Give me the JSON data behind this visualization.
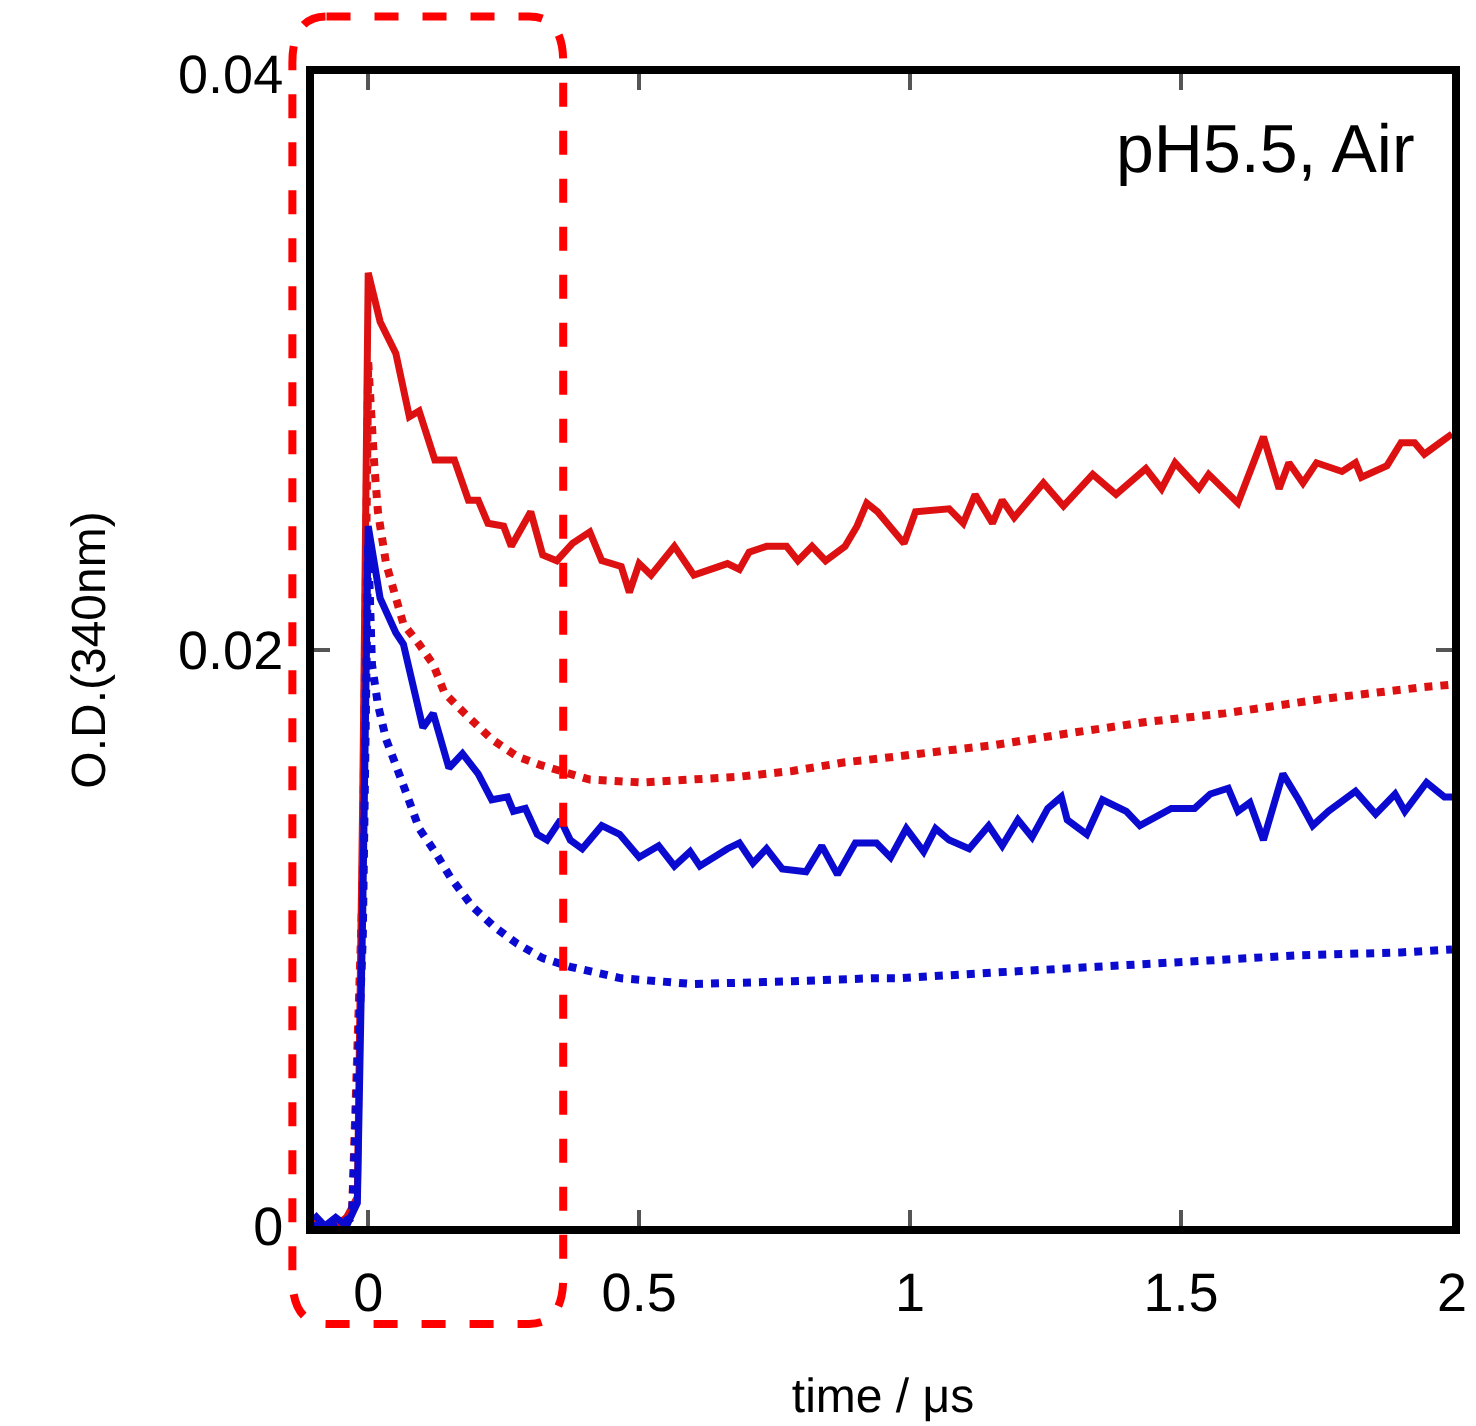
{
  "chart_data": {
    "type": "line",
    "xlabel": "time / μs",
    "ylabel": "O.D.(340nm)",
    "annotations": [
      "pH5.5, Air"
    ],
    "xlim": [
      -0.1,
      2
    ],
    "xticks": [
      0,
      0.5,
      1,
      1.5,
      2
    ],
    "ylim": [
      0,
      0.04
    ],
    "yticks": [
      0,
      0.02,
      0.04
    ],
    "series": [
      {
        "color": "#dd1111",
        "line_style": "solid",
        "x": [
          -0.1,
          -0.08,
          -0.06,
          -0.04,
          -0.02,
          -0.01,
          0,
          0.022,
          0.051,
          0.076,
          0.094,
          0.123,
          0.159,
          0.185,
          0.203,
          0.221,
          0.25,
          0.264,
          0.3,
          0.322,
          0.348,
          0.377,
          0.409,
          0.431,
          0.467,
          0.482,
          0.5,
          0.522,
          0.565,
          0.601,
          0.663,
          0.685,
          0.703,
          0.735,
          0.772,
          0.793,
          0.819,
          0.844,
          0.88,
          0.902,
          0.92,
          0.94,
          0.989,
          1.01,
          1.072,
          1.098,
          1.12,
          1.152,
          1.17,
          1.192,
          1.246,
          1.283,
          1.337,
          1.38,
          1.435,
          1.464,
          1.489,
          1.533,
          1.551,
          1.605,
          1.652,
          1.681,
          1.699,
          1.725,
          1.75,
          1.797,
          1.822,
          1.833,
          1.88,
          1.906,
          1.931,
          1.949,
          1.978,
          2
        ],
        "values": [
          0.0003,
          0.0,
          0.0,
          0.0003,
          0.001,
          0.015,
          0.0331,
          0.0314,
          0.0303,
          0.0281,
          0.0283,
          0.0266,
          0.0266,
          0.0252,
          0.0252,
          0.0244,
          0.0243,
          0.0236,
          0.0248,
          0.0233,
          0.0231,
          0.0237,
          0.0241,
          0.0231,
          0.0229,
          0.022,
          0.023,
          0.0226,
          0.0236,
          0.0226,
          0.023,
          0.0228,
          0.0234,
          0.0236,
          0.0236,
          0.0231,
          0.0236,
          0.0231,
          0.0236,
          0.0243,
          0.0251,
          0.0248,
          0.0237,
          0.0248,
          0.0249,
          0.0244,
          0.0254,
          0.0244,
          0.0252,
          0.0246,
          0.0258,
          0.025,
          0.0261,
          0.0254,
          0.0263,
          0.0256,
          0.0265,
          0.0256,
          0.0261,
          0.0251,
          0.0274,
          0.0256,
          0.0265,
          0.0258,
          0.0265,
          0.0262,
          0.0265,
          0.026,
          0.0264,
          0.0272,
          0.0272,
          0.0268,
          0.0272,
          0.0275
        ]
      },
      {
        "color": "#dd1111",
        "line_style": "dotted",
        "x": [
          -0.1,
          -0.06,
          -0.03,
          -0.01,
          0,
          0.011,
          0.018,
          0.033,
          0.065,
          0.094,
          0.12,
          0.141,
          0.178,
          0.228,
          0.275,
          0.319,
          0.409,
          0.504,
          0.685,
          0.783,
          0.88,
          0.975,
          1.018,
          1.156,
          1.29,
          1.435,
          1.58,
          1.761,
          1.942,
          2
        ],
        "values": [
          0.0,
          0.0,
          0.0003,
          0.012,
          0.03,
          0.0265,
          0.0248,
          0.023,
          0.0209,
          0.0202,
          0.0195,
          0.0185,
          0.0178,
          0.0169,
          0.0163,
          0.016,
          0.0155,
          0.0154,
          0.0156,
          0.0158,
          0.0161,
          0.0163,
          0.0164,
          0.0167,
          0.0171,
          0.0175,
          0.0178,
          0.0183,
          0.0187,
          0.0188
        ]
      },
      {
        "color": "#0a0ad0",
        "line_style": "solid",
        "x": [
          -0.1,
          -0.08,
          -0.06,
          -0.04,
          -0.02,
          -0.01,
          0,
          0.022,
          0.051,
          0.065,
          0.101,
          0.12,
          0.149,
          0.174,
          0.203,
          0.228,
          0.257,
          0.268,
          0.29,
          0.312,
          0.33,
          0.355,
          0.373,
          0.395,
          0.431,
          0.464,
          0.5,
          0.536,
          0.565,
          0.594,
          0.612,
          0.663,
          0.685,
          0.71,
          0.735,
          0.764,
          0.808,
          0.837,
          0.866,
          0.899,
          0.938,
          0.964,
          0.993,
          1.025,
          1.047,
          1.072,
          1.109,
          1.145,
          1.17,
          1.199,
          1.225,
          1.254,
          1.279,
          1.29,
          1.326,
          1.355,
          1.399,
          1.424,
          1.482,
          1.525,
          1.554,
          1.587,
          1.605,
          1.627,
          1.652,
          1.688,
          1.717,
          1.743,
          1.772,
          1.822,
          1.859,
          1.895,
          1.913,
          1.953,
          1.986,
          2
        ],
        "values": [
          0.0004,
          0.0,
          0.0003,
          0.0,
          0.0008,
          0.011,
          0.0243,
          0.0218,
          0.0206,
          0.0202,
          0.0173,
          0.0178,
          0.0159,
          0.0164,
          0.0157,
          0.0148,
          0.0149,
          0.0144,
          0.0145,
          0.0136,
          0.0134,
          0.0141,
          0.0134,
          0.0131,
          0.0139,
          0.0136,
          0.0128,
          0.0132,
          0.0125,
          0.013,
          0.0125,
          0.0131,
          0.0133,
          0.0126,
          0.0131,
          0.0124,
          0.0123,
          0.0132,
          0.0122,
          0.0133,
          0.0133,
          0.0128,
          0.0138,
          0.013,
          0.0138,
          0.0134,
          0.0131,
          0.0139,
          0.0132,
          0.0141,
          0.0135,
          0.0145,
          0.0149,
          0.0141,
          0.0136,
          0.0148,
          0.0144,
          0.0139,
          0.0145,
          0.0145,
          0.015,
          0.0152,
          0.0144,
          0.0147,
          0.0134,
          0.0157,
          0.0148,
          0.0139,
          0.0144,
          0.0151,
          0.0143,
          0.015,
          0.0144,
          0.0154,
          0.0149,
          0.0149
        ]
      },
      {
        "color": "#0a0ad0",
        "line_style": "dotted",
        "x": [
          -0.1,
          -0.06,
          -0.03,
          -0.01,
          0,
          0.007,
          0.018,
          0.033,
          0.065,
          0.094,
          0.123,
          0.152,
          0.192,
          0.232,
          0.275,
          0.322,
          0.373,
          0.467,
          0.601,
          0.783,
          0.928,
          0.975,
          1.156,
          1.344,
          1.533,
          1.717,
          1.906,
          2
        ],
        "values": [
          0.0,
          0.0,
          0.0003,
          0.01,
          0.0237,
          0.0195,
          0.0181,
          0.0169,
          0.0153,
          0.0138,
          0.013,
          0.0121,
          0.0111,
          0.0104,
          0.0098,
          0.0093,
          0.009,
          0.0086,
          0.0084,
          0.0085,
          0.0086,
          0.0086,
          0.0088,
          0.009,
          0.0092,
          0.0094,
          0.0095,
          0.0096
        ]
      }
    ]
  }
}
